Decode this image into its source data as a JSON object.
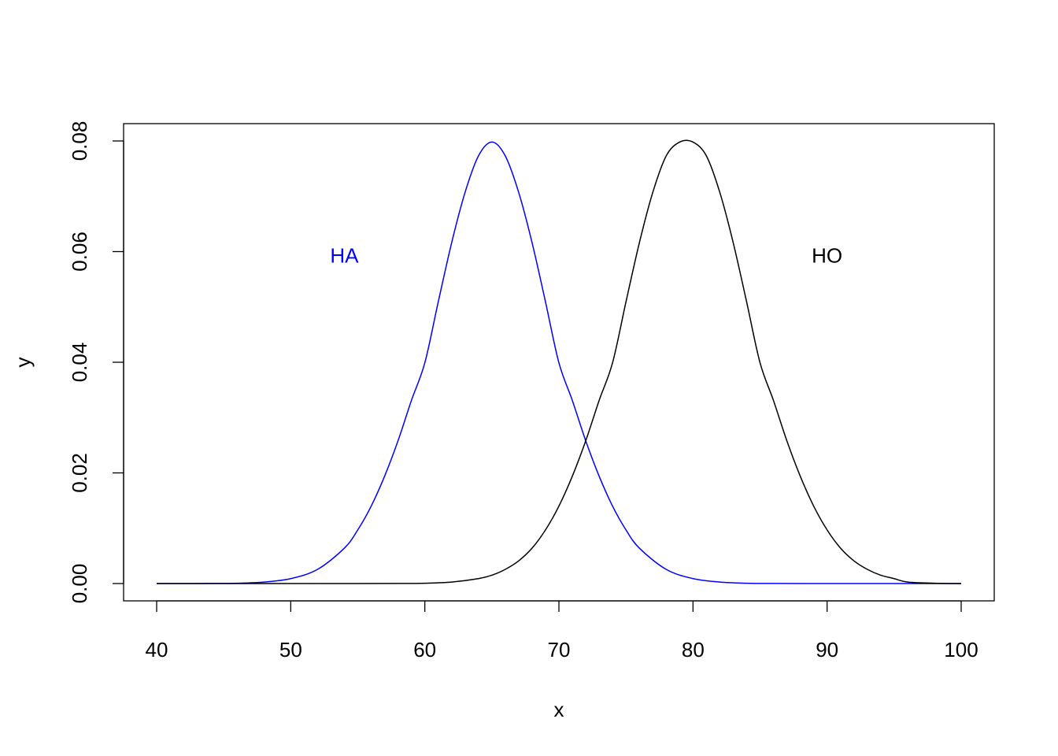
{
  "chart_data": {
    "type": "line",
    "title": "",
    "xlabel": "x",
    "ylabel": "y",
    "xlim": [
      40,
      100
    ],
    "ylim": [
      0,
      0.08
    ],
    "x_ticks": [
      40,
      50,
      60,
      70,
      80,
      90,
      100
    ],
    "x_tick_labels": [
      "40",
      "50",
      "60",
      "70",
      "80",
      "90",
      "100"
    ],
    "y_ticks": [
      0,
      0.02,
      0.04,
      0.06,
      0.08
    ],
    "y_tick_labels": [
      "0.00",
      "0.02",
      "0.04",
      "0.06",
      "0.08"
    ],
    "grid": false,
    "legend": "none",
    "series": [
      {
        "color": "#0000FF",
        "x": [
          40,
          42,
          44,
          46,
          48,
          50,
          52,
          54,
          55,
          56,
          57,
          58,
          59,
          60,
          61,
          62,
          63,
          64,
          65,
          66,
          67,
          68,
          69,
          70,
          71,
          72,
          73,
          74,
          75,
          76,
          78,
          80,
          82,
          84,
          86,
          90,
          95,
          100
        ],
        "y": [
          0.0,
          0.0,
          1e-05,
          6e-05,
          0.00027,
          0.00089,
          0.00256,
          0.0064,
          0.0097,
          0.014,
          0.0194,
          0.0258,
          0.0331,
          0.0399,
          0.0509,
          0.0616,
          0.0707,
          0.0773,
          0.0798,
          0.0773,
          0.0707,
          0.0616,
          0.0509,
          0.0399,
          0.0331,
          0.0258,
          0.0194,
          0.014,
          0.0097,
          0.0064,
          0.00256,
          0.00089,
          0.00027,
          6e-05,
          1e-05,
          0.0,
          0.0,
          0.0
        ]
      },
      {
        "color": "#000000",
        "x": [
          40,
          50,
          55,
          58,
          60,
          62,
          64,
          65,
          66,
          67,
          68,
          69,
          70,
          71,
          72,
          73,
          74,
          75,
          76,
          77,
          78,
          79,
          80,
          81,
          82,
          83,
          84,
          85,
          86,
          87,
          88,
          89,
          90,
          91,
          92,
          93,
          94,
          95,
          96,
          98,
          100
        ],
        "y": [
          0.0,
          0.0,
          0.0,
          1e-05,
          6e-05,
          0.00027,
          0.00089,
          0.0015,
          0.00256,
          0.0041,
          0.0064,
          0.0097,
          0.014,
          0.0194,
          0.0258,
          0.0331,
          0.0399,
          0.0509,
          0.0616,
          0.0707,
          0.0773,
          0.0798,
          0.0798,
          0.0773,
          0.0707,
          0.0616,
          0.0509,
          0.0399,
          0.0331,
          0.0258,
          0.0194,
          0.014,
          0.0097,
          0.0064,
          0.0041,
          0.00256,
          0.0015,
          0.00089,
          0.00027,
          6e-05,
          0.0
        ]
      }
    ],
    "annotations": [
      {
        "text": "HA",
        "x": 54,
        "y": 0.059,
        "color": "#0000FF"
      },
      {
        "text": "HO",
        "x": 90,
        "y": 0.059,
        "color": "#000000"
      }
    ]
  }
}
